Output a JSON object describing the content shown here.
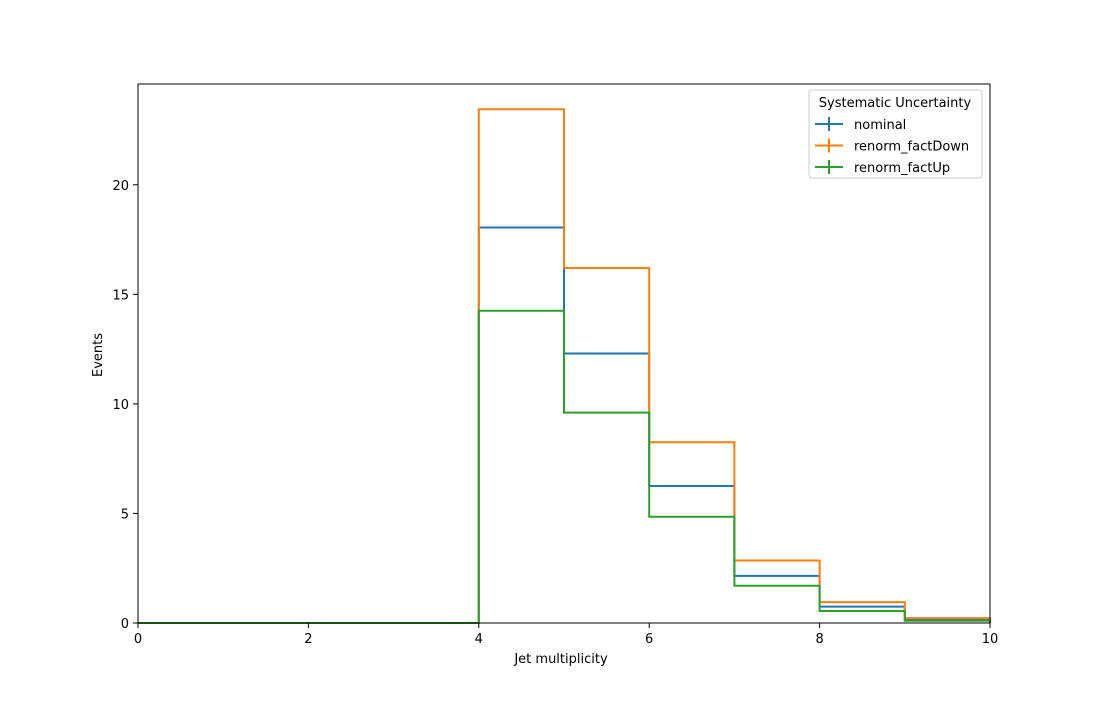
{
  "chart_data": {
    "type": "histogram-step",
    "xlabel": "Jet multiplicity",
    "ylabel": "Events",
    "xlim": [
      0,
      10
    ],
    "ylim": [
      0,
      24.6
    ],
    "x_ticks": [
      0,
      2,
      4,
      6,
      8,
      10
    ],
    "y_ticks": [
      0,
      5,
      10,
      15,
      20
    ],
    "bin_edges": [
      0,
      1,
      2,
      3,
      4,
      5,
      6,
      7,
      8,
      9,
      10
    ],
    "grid": false,
    "legend": {
      "title": "Systematic Uncertainty",
      "position": "top-right"
    },
    "series": [
      {
        "name": "nominal",
        "color": "#1f77b4",
        "values": [
          0,
          0,
          0,
          0,
          18.05,
          12.3,
          6.25,
          2.15,
          0.75,
          0.15
        ]
      },
      {
        "name": "renorm_factDown",
        "color": "#ff7f0e",
        "values": [
          0,
          0,
          0,
          0,
          23.45,
          16.2,
          8.25,
          2.85,
          0.95,
          0.22
        ]
      },
      {
        "name": "renorm_factUp",
        "color": "#2ca02c",
        "values": [
          0,
          0,
          0,
          0,
          14.25,
          9.6,
          4.85,
          1.7,
          0.55,
          0.1
        ]
      }
    ]
  }
}
